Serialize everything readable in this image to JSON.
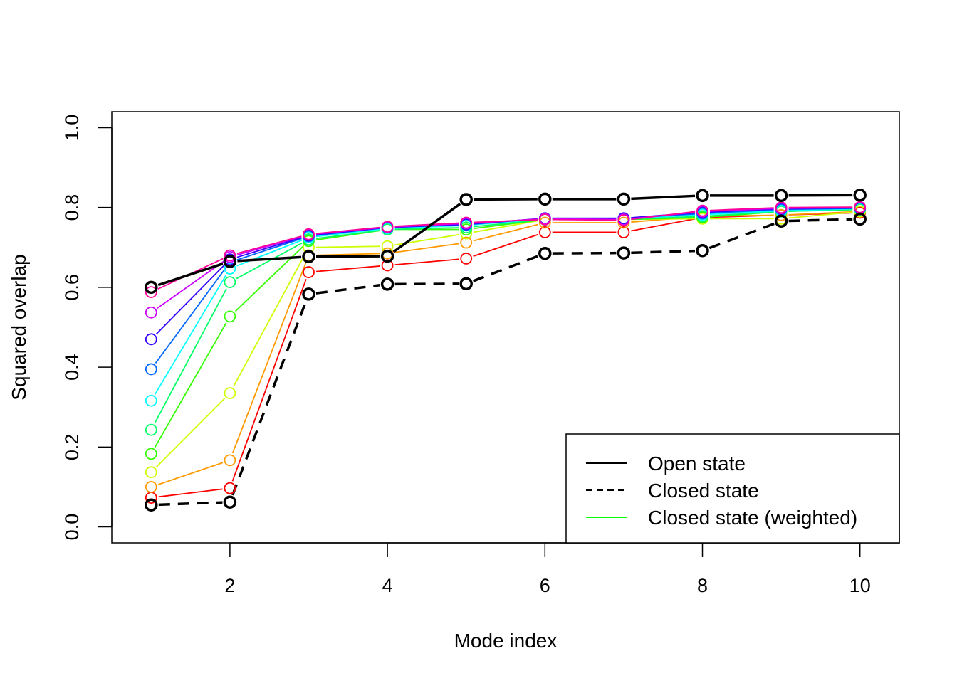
{
  "chart_data": {
    "type": "line",
    "title": "",
    "xlabel": "Mode index",
    "ylabel": "Squared overlap",
    "xlim": [
      0.5,
      10.5
    ],
    "ylim": [
      -0.04,
      1.04
    ],
    "x_ticks": [
      2,
      4,
      6,
      8,
      10
    ],
    "x_tick_labels": [
      "2",
      "4",
      "6",
      "8",
      "10"
    ],
    "y_ticks": [
      0.0,
      0.2,
      0.4,
      0.6,
      0.8,
      1.0
    ],
    "y_tick_labels": [
      "0.0",
      "0.2",
      "0.4",
      "0.6",
      "0.8",
      "1.0"
    ],
    "grid": false,
    "legend_position": "bottom-right",
    "x": [
      1,
      2,
      3,
      4,
      5,
      6,
      7,
      8,
      9,
      10
    ],
    "legend": [
      {
        "label": "Open state",
        "style": "solid",
        "color": "#000000"
      },
      {
        "label": "Closed state",
        "style": "dashed",
        "color": "#000000"
      },
      {
        "label": "Closed state (weighted)",
        "style": "solid",
        "color": "#00FF00"
      }
    ],
    "series": [
      {
        "name": "Open state",
        "style": "solid",
        "color": "#000000",
        "bold": true,
        "values": [
          0.6,
          0.665,
          0.677,
          0.678,
          0.82,
          0.821,
          0.821,
          0.83,
          0.83,
          0.831
        ]
      },
      {
        "name": "Closed state",
        "style": "dashed",
        "color": "#000000",
        "bold": true,
        "values": [
          0.055,
          0.062,
          0.583,
          0.608,
          0.609,
          0.685,
          0.686,
          0.692,
          0.766,
          0.771
        ]
      },
      {
        "style": "solid",
        "color": "#FF0000",
        "values": [
          0.073,
          0.097,
          0.638,
          0.655,
          0.672,
          0.738,
          0.738,
          0.775,
          0.781,
          0.787
        ]
      },
      {
        "style": "solid",
        "color": "#FF9900",
        "values": [
          0.1,
          0.167,
          0.68,
          0.685,
          0.712,
          0.762,
          0.762,
          0.778,
          0.781,
          0.79
        ]
      },
      {
        "style": "solid",
        "color": "#CCFF00",
        "values": [
          0.137,
          0.335,
          0.7,
          0.703,
          0.735,
          0.77,
          0.77,
          0.772,
          0.772,
          0.79
        ]
      },
      {
        "style": "solid",
        "color": "#33FF00",
        "values": [
          0.183,
          0.527,
          0.716,
          0.745,
          0.745,
          0.77,
          0.77,
          0.775,
          0.79,
          0.795
        ]
      },
      {
        "style": "solid",
        "color": "#00FF66",
        "values": [
          0.243,
          0.613,
          0.72,
          0.745,
          0.75,
          0.77,
          0.77,
          0.778,
          0.79,
          0.795
        ]
      },
      {
        "style": "solid",
        "color": "#00FFFF",
        "values": [
          0.316,
          0.647,
          0.725,
          0.748,
          0.755,
          0.772,
          0.772,
          0.782,
          0.792,
          0.797
        ]
      },
      {
        "style": "solid",
        "color": "#0066FF",
        "values": [
          0.395,
          0.663,
          0.728,
          0.75,
          0.757,
          0.773,
          0.773,
          0.785,
          0.795,
          0.798
        ]
      },
      {
        "style": "solid",
        "color": "#3300FF",
        "values": [
          0.47,
          0.67,
          0.73,
          0.75,
          0.758,
          0.773,
          0.773,
          0.788,
          0.797,
          0.799
        ]
      },
      {
        "style": "solid",
        "color": "#CC00FF",
        "values": [
          0.537,
          0.676,
          0.732,
          0.751,
          0.76,
          0.772,
          0.77,
          0.79,
          0.798,
          0.8
        ]
      },
      {
        "style": "solid",
        "color": "#FF0099",
        "values": [
          0.588,
          0.68,
          0.733,
          0.752,
          0.762,
          0.77,
          0.768,
          0.792,
          0.8,
          0.801
        ]
      }
    ]
  }
}
